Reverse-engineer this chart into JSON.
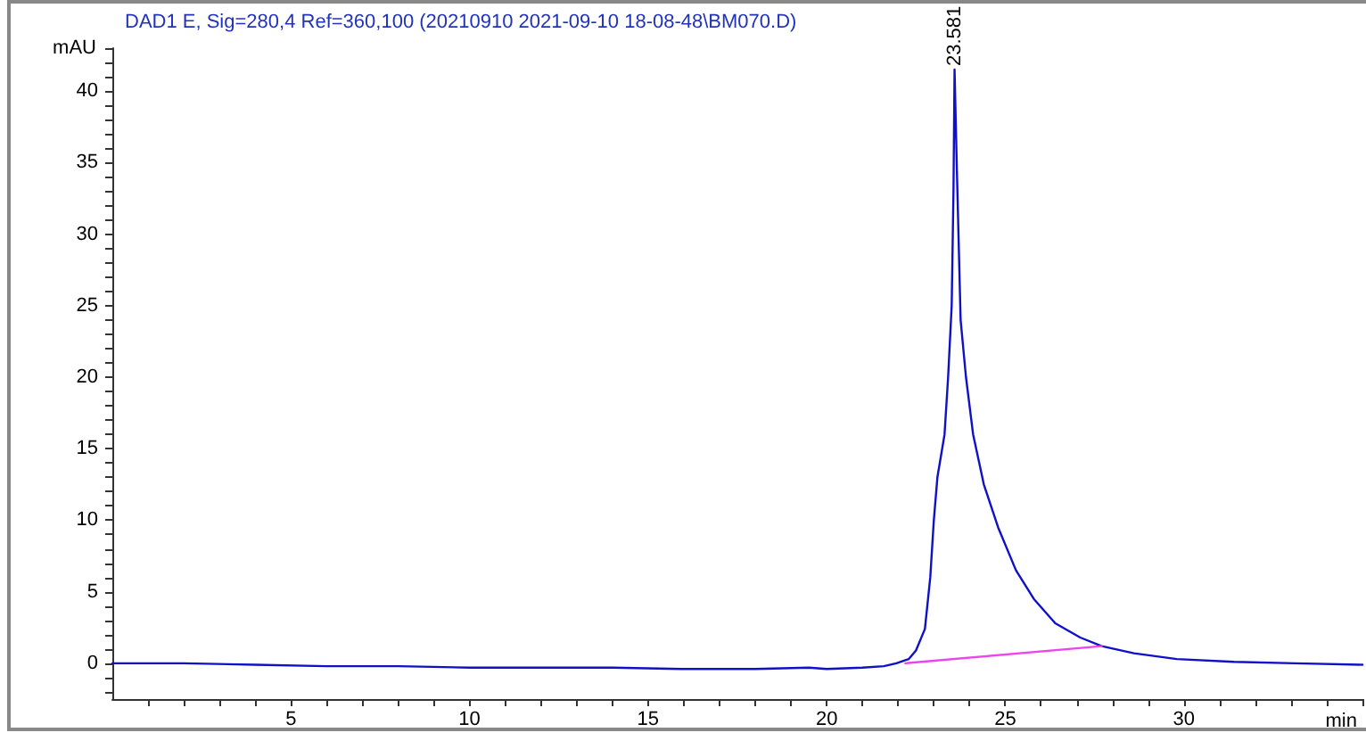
{
  "chart_data": {
    "type": "line",
    "title": "DAD1 E, Sig=280,4 Ref=360,100 (20210910 2021-09-10 18-08-48\\BM070.D)",
    "xlabel": "min",
    "ylabel": "mAU",
    "xlim": [
      0,
      35
    ],
    "ylim": [
      -2.5,
      43
    ],
    "xticks": [
      {
        "value": 1,
        "label": null
      },
      {
        "value": 2,
        "label": null
      },
      {
        "value": 3,
        "label": null
      },
      {
        "value": 4,
        "label": null
      },
      5,
      {
        "value": 6,
        "label": null
      },
      {
        "value": 7,
        "label": null
      },
      {
        "value": 8,
        "label": null
      },
      {
        "value": 9,
        "label": null
      },
      10,
      {
        "value": 11,
        "label": null
      },
      {
        "value": 12,
        "label": null
      },
      {
        "value": 13,
        "label": null
      },
      {
        "value": 14,
        "label": null
      },
      15,
      {
        "value": 16,
        "label": null
      },
      {
        "value": 17,
        "label": null
      },
      {
        "value": 18,
        "label": null
      },
      {
        "value": 19,
        "label": null
      },
      20,
      {
        "value": 21,
        "label": null
      },
      {
        "value": 22,
        "label": null
      },
      {
        "value": 23,
        "label": null
      },
      {
        "value": 24,
        "label": null
      },
      25,
      {
        "value": 26,
        "label": null
      },
      {
        "value": 27,
        "label": null
      },
      {
        "value": 28,
        "label": null
      },
      {
        "value": 29,
        "label": null
      },
      30,
      {
        "value": 31,
        "label": null
      },
      {
        "value": 32,
        "label": null
      },
      {
        "value": 33,
        "label": null
      },
      {
        "value": 34,
        "label": null
      },
      {
        "value": 35,
        "label": null
      }
    ],
    "yticks": [
      {
        "value": -2,
        "label": null
      },
      {
        "value": -1,
        "label": null
      },
      0,
      {
        "value": 1,
        "label": null
      },
      {
        "value": 2,
        "label": null
      },
      {
        "value": 3,
        "label": null
      },
      {
        "value": 4,
        "label": null
      },
      5,
      {
        "value": 6,
        "label": null
      },
      {
        "value": 7,
        "label": null
      },
      {
        "value": 8,
        "label": null
      },
      {
        "value": 9,
        "label": null
      },
      10,
      {
        "value": 11,
        "label": null
      },
      {
        "value": 12,
        "label": null
      },
      {
        "value": 13,
        "label": null
      },
      {
        "value": 14,
        "label": null
      },
      15,
      {
        "value": 16,
        "label": null
      },
      {
        "value": 17,
        "label": null
      },
      {
        "value": 18,
        "label": null
      },
      {
        "value": 19,
        "label": null
      },
      20,
      {
        "value": 21,
        "label": null
      },
      {
        "value": 22,
        "label": null
      },
      {
        "value": 23,
        "label": null
      },
      {
        "value": 24,
        "label": null
      },
      25,
      {
        "value": 26,
        "label": null
      },
      {
        "value": 27,
        "label": null
      },
      {
        "value": 28,
        "label": null
      },
      {
        "value": 29,
        "label": null
      },
      30,
      {
        "value": 31,
        "label": null
      },
      {
        "value": 32,
        "label": null
      },
      {
        "value": 33,
        "label": null
      },
      {
        "value": 34,
        "label": null
      },
      35,
      {
        "value": 36,
        "label": null
      },
      {
        "value": 37,
        "label": null
      },
      {
        "value": 38,
        "label": null
      },
      {
        "value": 39,
        "label": null
      },
      40,
      {
        "value": 41,
        "label": null
      },
      {
        "value": 42,
        "label": null
      },
      {
        "value": 43,
        "label": null
      }
    ],
    "grid": false,
    "marker": "none",
    "line_style": "solid",
    "annotations": [
      {
        "text": "23.581",
        "x": 23.581,
        "y": 41.5
      }
    ],
    "series": [
      {
        "color": "#1010c8",
        "x": [
          0,
          2,
          4,
          6,
          8,
          10,
          12,
          14,
          16,
          18,
          19.5,
          20,
          21,
          21.6,
          21.95,
          22.3,
          22.5,
          22.75,
          22.9,
          23,
          23.1,
          23.2,
          23.3,
          23.4,
          23.5,
          23.55,
          23.58,
          23.65,
          23.75,
          23.9,
          24.1,
          24.4,
          24.8,
          25.3,
          25.8,
          26.4,
          27.1,
          27.7,
          28.6,
          29.8,
          31.4,
          33.1,
          35
        ],
        "values": [
          0,
          0,
          -0.1,
          -0.2,
          -0.2,
          -0.3,
          -0.3,
          -0.3,
          -0.4,
          -0.4,
          -0.3,
          -0.4,
          -0.3,
          -0.2,
          0,
          0.3,
          0.9,
          2.4,
          6,
          10,
          13,
          14.5,
          16,
          20,
          25,
          33,
          41.5,
          34,
          24,
          20,
          16,
          12.5,
          9.5,
          6.5,
          4.5,
          2.8,
          1.8,
          1.2,
          0.7,
          0.3,
          0.1,
          0,
          -0.1
        ]
      },
      {
        "color": "#ee44ee",
        "x": [
          22.2,
          27.7
        ],
        "values": [
          0,
          1.2
        ]
      }
    ]
  }
}
